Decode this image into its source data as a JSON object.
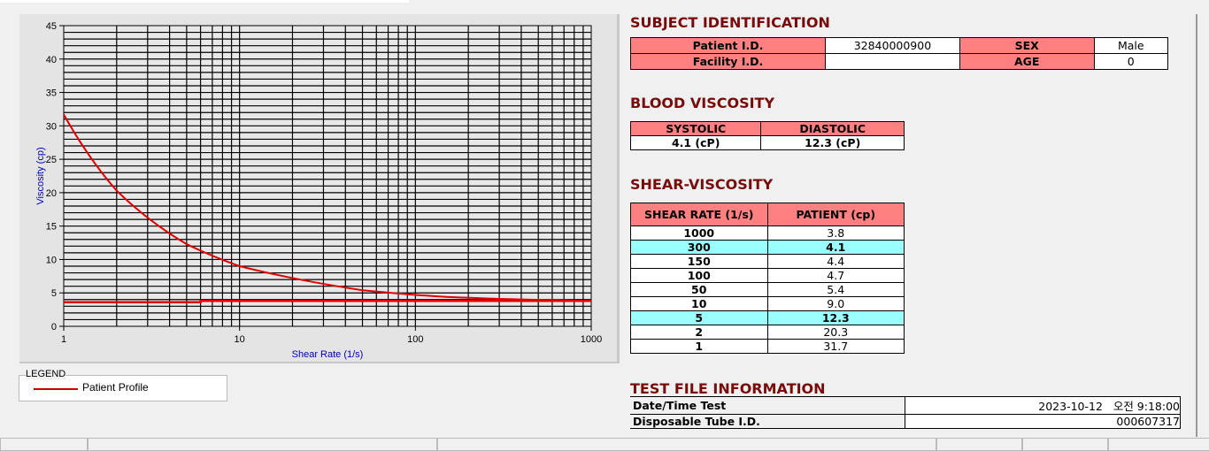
{
  "chart_data": {
    "type": "line",
    "xlabel": "Shear Rate (1/s)",
    "ylabel": "Viscosity (cp)",
    "xscale": "log",
    "xlim": [
      1,
      1000
    ],
    "ylim": [
      0,
      45
    ],
    "xticks": [
      "1",
      "10",
      "100",
      "1000"
    ],
    "yticks": [
      "0",
      "5",
      "10",
      "15",
      "20",
      "25",
      "30",
      "35",
      "40",
      "45"
    ],
    "grid": true,
    "series": [
      {
        "name": "Patient Profile",
        "color": "#e00000",
        "x": [
          1,
          2,
          5,
          10,
          50,
          100,
          150,
          300,
          1000
        ],
        "y": [
          31.7,
          20.3,
          12.3,
          9.0,
          5.4,
          4.7,
          4.4,
          4.1,
          3.8
        ]
      },
      {
        "color": "#e00000",
        "x": [
          1,
          6,
          6,
          1000
        ],
        "y": [
          3.6,
          3.6,
          3.8,
          3.8
        ]
      }
    ],
    "legend": {
      "title": "LEGEND",
      "placement": "bottom-left"
    }
  },
  "subject": {
    "title": "SUBJECT IDENTIFICATION",
    "patient_id_label": "Patient I.D.",
    "patient_id": "32840000900",
    "sex_label": "SEX",
    "sex": "Male",
    "facility_label": "Facility I.D.",
    "facility": "",
    "age_label": "AGE",
    "age": "0"
  },
  "blood": {
    "title": "BLOOD VISCOSITY",
    "systolic_label": "SYSTOLIC",
    "diastolic_label": "DIASTOLIC",
    "systolic": "4.1 (cP)",
    "diastolic": "12.3 (cP)"
  },
  "shear": {
    "title": "SHEAR-VISCOSITY",
    "col1": "SHEAR RATE (1/s)",
    "col2": "PATIENT (cp)",
    "rows": [
      [
        "1000",
        "3.8"
      ],
      [
        "300",
        "4.1"
      ],
      [
        "150",
        "4.4"
      ],
      [
        "100",
        "4.7"
      ],
      [
        "50",
        "5.4"
      ],
      [
        "10",
        "9.0"
      ],
      [
        "5",
        "12.3"
      ],
      [
        "2",
        "20.3"
      ],
      [
        "1",
        "31.7"
      ]
    ],
    "highlight_color": "#99ffff"
  },
  "testfile": {
    "title": "TEST FILE INFORMATION",
    "date_label": "Date/Time Test",
    "date": "2023-10-12   오전 9:18:00",
    "tube_label": "Disposable Tube I.D.",
    "tube": "000607317"
  }
}
